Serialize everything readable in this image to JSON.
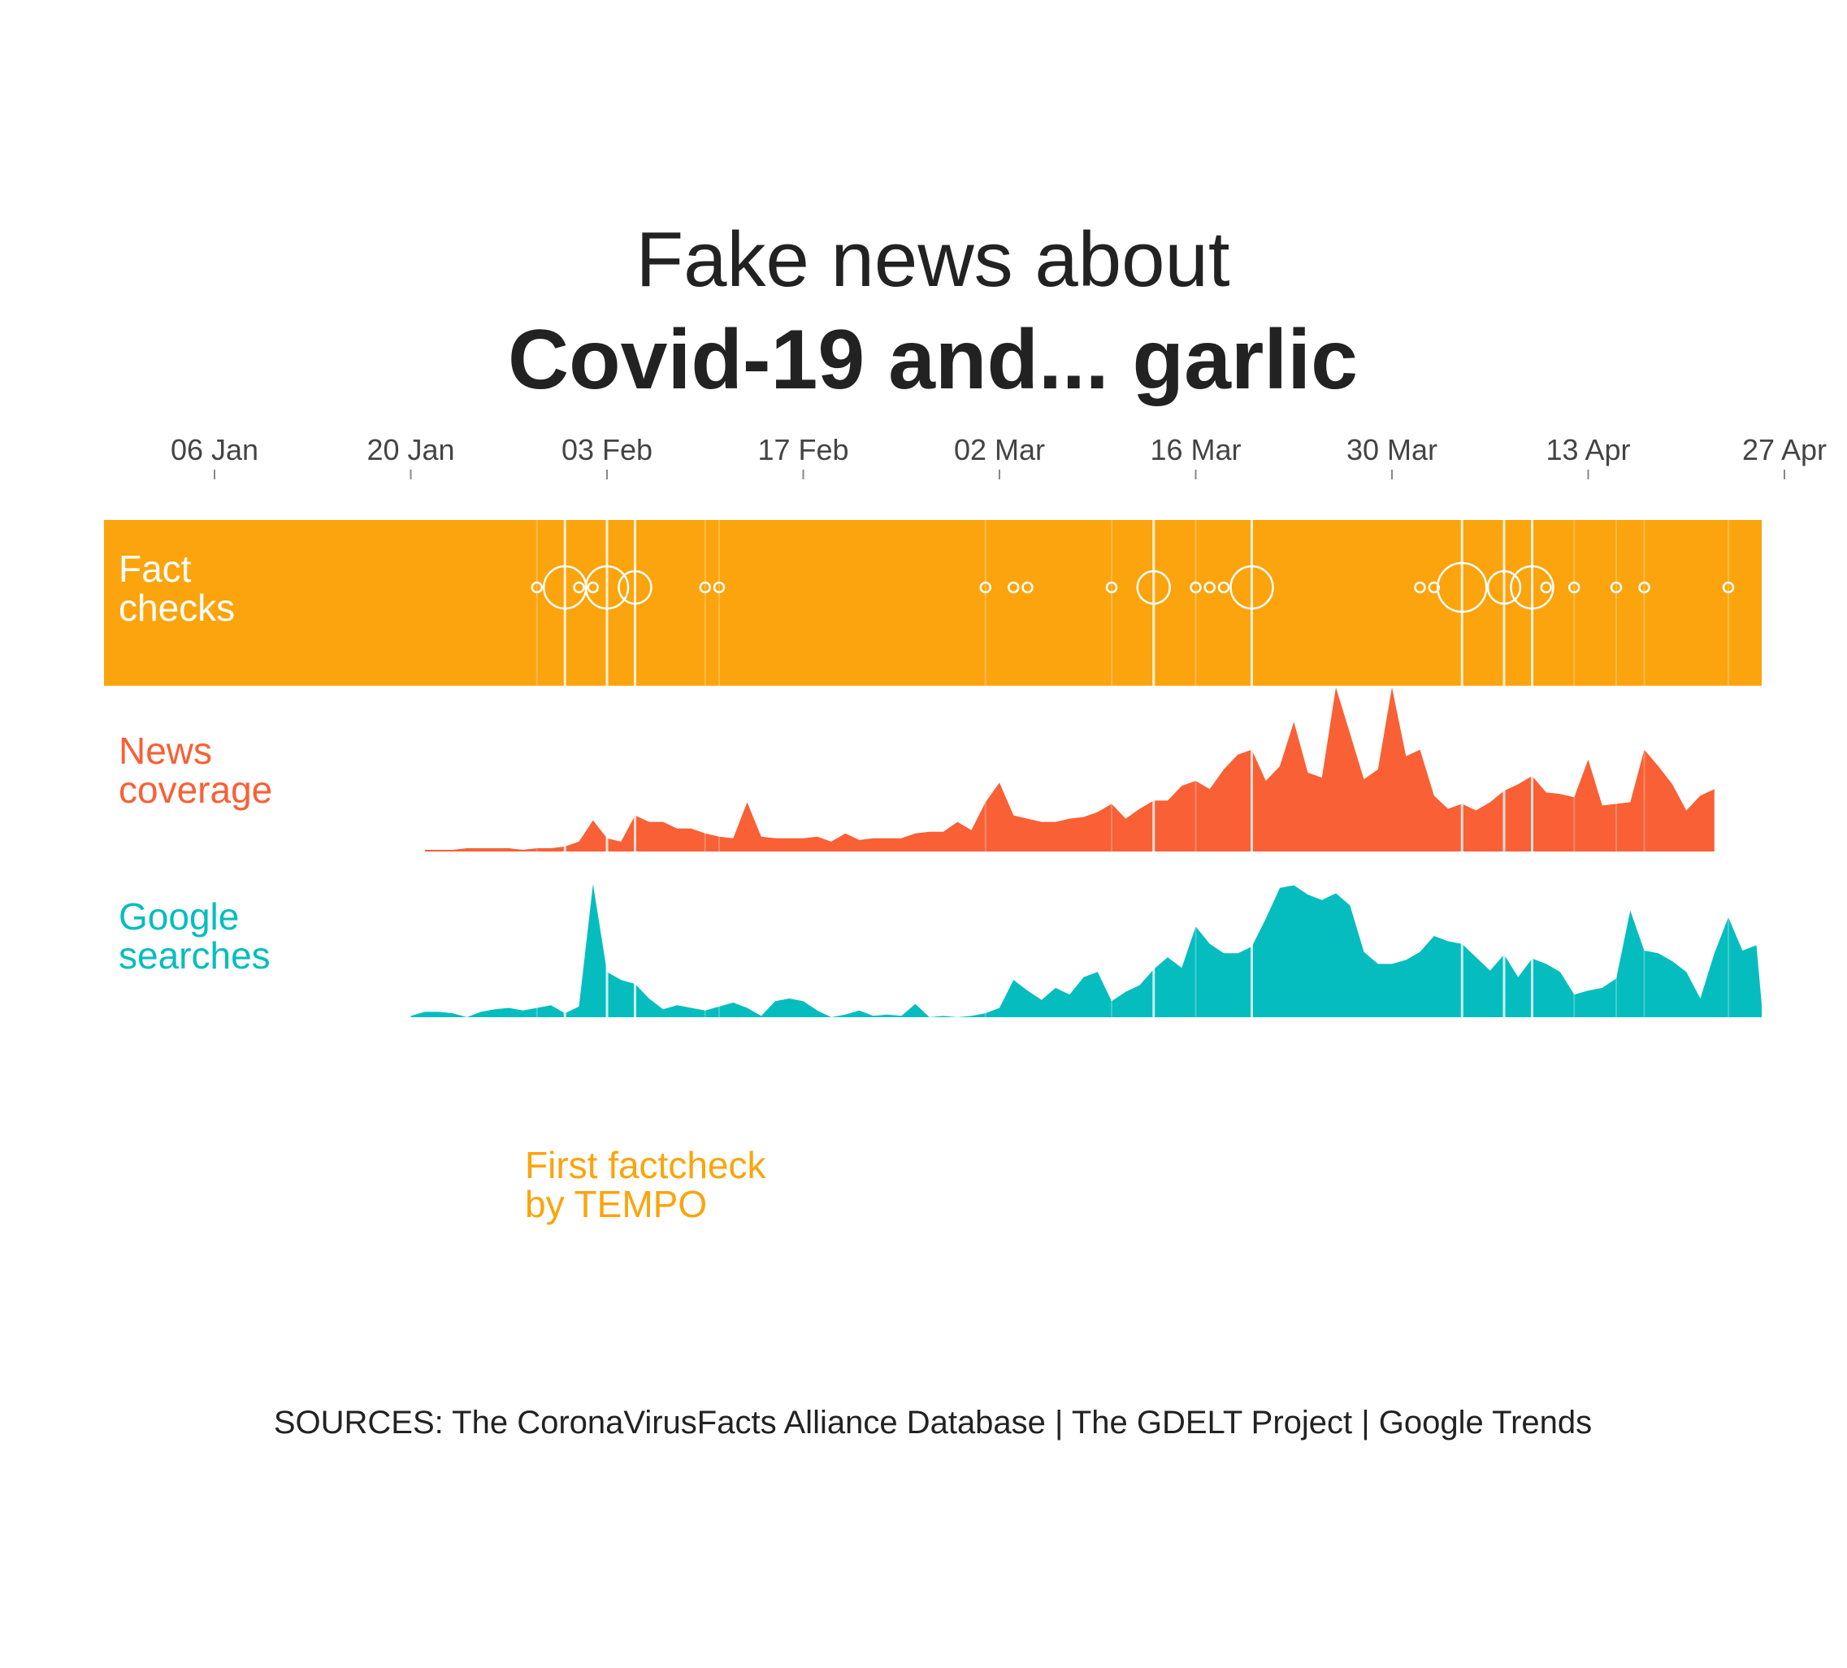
{
  "colors": {
    "fact_checks": "#FBA40D",
    "news_coverage": "#F96035",
    "google_searches": "#05BDBF",
    "text": "#222222",
    "tick_text": "#444444"
  },
  "chart_data": {
    "type": "area",
    "title_line1": "Fake news about",
    "title_line2": "Covid-19 and... garlic",
    "x_axis": {
      "start": "2019-12-30",
      "end": "2020-04-27",
      "ticks": [
        "06 Jan",
        "20 Jan",
        "03 Feb",
        "17 Feb",
        "02 Mar",
        "16 Mar",
        "30 Mar",
        "13 Apr",
        "27 Apr"
      ],
      "tick_dates": [
        "2020-01-06",
        "2020-01-20",
        "2020-02-03",
        "2020-02-17",
        "2020-03-02",
        "2020-03-16",
        "2020-03-30",
        "2020-04-13",
        "2020-04-27"
      ]
    },
    "fact_checks": {
      "label_line1": "Fact",
      "label_line2": "checks",
      "events": [
        {
          "date": "2020-01-29",
          "count": 1
        },
        {
          "date": "2020-01-31",
          "count": 3
        },
        {
          "date": "2020-02-01",
          "count": 1
        },
        {
          "date": "2020-02-02",
          "count": 1
        },
        {
          "date": "2020-02-03",
          "count": 3
        },
        {
          "date": "2020-02-05",
          "count": 2
        },
        {
          "date": "2020-02-10",
          "count": 1
        },
        {
          "date": "2020-02-11",
          "count": 1
        },
        {
          "date": "2020-03-01",
          "count": 1
        },
        {
          "date": "2020-03-03",
          "count": 1
        },
        {
          "date": "2020-03-04",
          "count": 1
        },
        {
          "date": "2020-03-10",
          "count": 1
        },
        {
          "date": "2020-03-13",
          "count": 2
        },
        {
          "date": "2020-03-16",
          "count": 1
        },
        {
          "date": "2020-03-17",
          "count": 1
        },
        {
          "date": "2020-03-18",
          "count": 1
        },
        {
          "date": "2020-03-20",
          "count": 3
        },
        {
          "date": "2020-04-01",
          "count": 1
        },
        {
          "date": "2020-04-02",
          "count": 1
        },
        {
          "date": "2020-04-04",
          "count": 4
        },
        {
          "date": "2020-04-07",
          "count": 2
        },
        {
          "date": "2020-04-09",
          "count": 3
        },
        {
          "date": "2020-04-10",
          "count": 1
        },
        {
          "date": "2020-04-12",
          "count": 1
        },
        {
          "date": "2020-04-15",
          "count": 1
        },
        {
          "date": "2020-04-17",
          "count": 1
        },
        {
          "date": "2020-04-23",
          "count": 1
        }
      ]
    },
    "news_coverage": {
      "label_line1": "News",
      "label_line2": "coverage",
      "start": "2020-01-21",
      "values": [
        1,
        1,
        1,
        2,
        2,
        2,
        2,
        1,
        2,
        2,
        3,
        6,
        19,
        8,
        6,
        22,
        18,
        18,
        14,
        14,
        11,
        9,
        8,
        30,
        9,
        8,
        8,
        8,
        9,
        6,
        11,
        7,
        8,
        8,
        8,
        11,
        12,
        12,
        18,
        13,
        30,
        42,
        22,
        20,
        18,
        18,
        20,
        21,
        24,
        29,
        20,
        26,
        31,
        31,
        40,
        43,
        38,
        50,
        59,
        62,
        43,
        52,
        79,
        48,
        45,
        100,
        72,
        44,
        50,
        100,
        58,
        62,
        34,
        26,
        29,
        25,
        30,
        37,
        41,
        46,
        36,
        35,
        33,
        56,
        28,
        29,
        30,
        62,
        52,
        41,
        25,
        34,
        38
      ],
      "value_max": 100
    },
    "google_searches": {
      "label_line1": "Google",
      "label_line2": "searches",
      "start": "2020-01-20",
      "values": [
        1,
        4,
        4,
        3,
        0,
        4,
        6,
        7,
        5,
        7,
        9,
        3,
        8,
        100,
        34,
        28,
        25,
        14,
        6,
        9,
        7,
        5,
        8,
        11,
        7,
        1,
        12,
        14,
        12,
        5,
        0,
        2,
        5,
        1,
        2,
        1,
        10,
        0,
        1,
        0,
        1,
        3,
        7,
        28,
        20,
        13,
        22,
        17,
        30,
        34,
        12,
        19,
        24,
        36,
        45,
        37,
        68,
        55,
        48,
        48,
        53,
        74,
        97,
        99,
        92,
        88,
        93,
        84,
        49,
        40,
        40,
        43,
        49,
        61,
        57,
        55,
        45,
        35,
        47,
        30,
        44,
        40,
        34,
        17,
        20,
        22,
        29,
        80,
        50,
        48,
        42,
        34,
        14,
        48,
        75,
        50,
        54,
        10,
        47,
        40,
        44
      ],
      "value_max": 100
    },
    "annotation": {
      "line1": "First factcheck",
      "line2": "by TEMPO"
    },
    "highlight_dates": [
      "2020-01-31",
      "2020-02-03",
      "2020-02-05",
      "2020-03-13",
      "2020-03-20",
      "2020-04-04",
      "2020-04-07",
      "2020-04-09"
    ],
    "faint_dates": [
      "2020-01-29",
      "2020-02-10",
      "2020-02-11",
      "2020-03-01",
      "2020-03-10",
      "2020-03-16",
      "2020-04-12",
      "2020-04-15",
      "2020-04-17",
      "2020-04-23"
    ],
    "grid": false
  },
  "sources": "SOURCES: The CoronaVirusFacts Alliance Database | The GDELT Project | Google Trends"
}
